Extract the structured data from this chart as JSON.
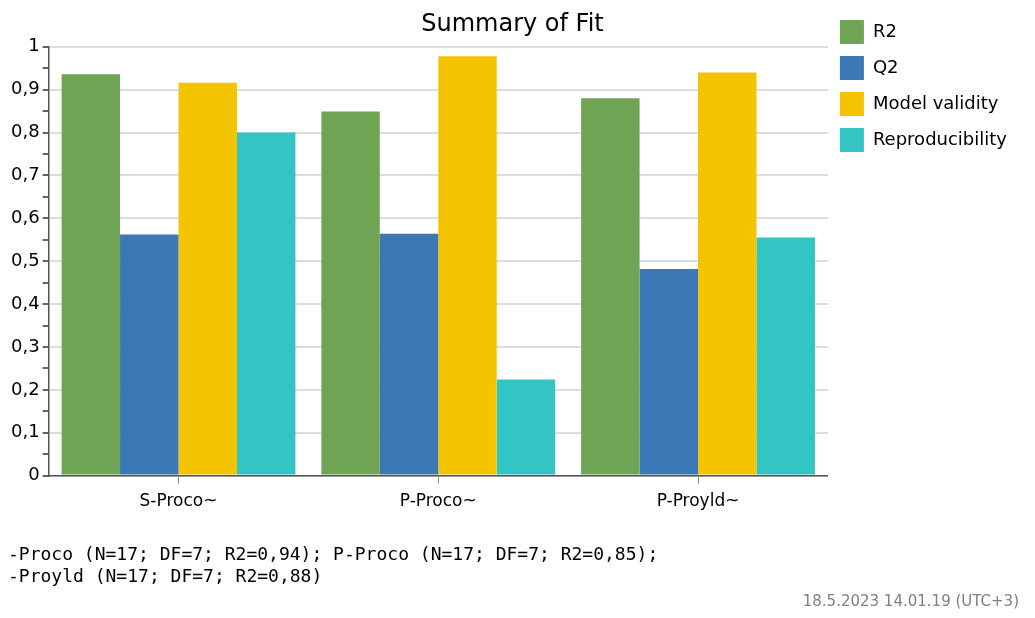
{
  "chart_data": {
    "type": "bar",
    "title": "Summary of Fit",
    "categories": [
      "S-Proco~",
      "P-Proco~",
      "P-Proyld~"
    ],
    "series": [
      {
        "name": "R2",
        "color": "#70a455",
        "values": [
          0.936,
          0.849,
          0.88
        ]
      },
      {
        "name": "Q2",
        "color": "#3c78b5",
        "values": [
          0.562,
          0.564,
          0.482
        ]
      },
      {
        "name": "Model validity",
        "color": "#f4c400",
        "values": [
          0.916,
          0.978,
          0.94
        ]
      },
      {
        "name": "Reproducibility",
        "color": "#33c4c4",
        "values": [
          0.8,
          0.224,
          0.555
        ]
      }
    ],
    "ylim": [
      0,
      1
    ],
    "yticks": [
      {
        "value": 0,
        "label": "0"
      },
      {
        "value": 0.05,
        "label": null
      },
      {
        "value": 0.1,
        "label": "0,1"
      },
      {
        "value": 0.15,
        "label": null
      },
      {
        "value": 0.2,
        "label": "0,2"
      },
      {
        "value": 0.25,
        "label": null
      },
      {
        "value": 0.3,
        "label": "0,3"
      },
      {
        "value": 0.35,
        "label": null
      },
      {
        "value": 0.4,
        "label": "0,4"
      },
      {
        "value": 0.45,
        "label": null
      },
      {
        "value": 0.5,
        "label": "0,5"
      },
      {
        "value": 0.55,
        "label": null
      },
      {
        "value": 0.6,
        "label": "0,6"
      },
      {
        "value": 0.65,
        "label": null
      },
      {
        "value": 0.7,
        "label": "0,7"
      },
      {
        "value": 0.75,
        "label": null
      },
      {
        "value": 0.8,
        "label": "0,8"
      },
      {
        "value": 0.85,
        "label": null
      },
      {
        "value": 0.9,
        "label": "0,9"
      },
      {
        "value": 0.95,
        "label": null
      },
      {
        "value": 1,
        "label": "1"
      }
    ],
    "grid": "y",
    "legend": "top right",
    "annotations": [
      "-Proco (N=17; DF=7; R2=0,94); P-Proco (N=17; DF=7; R2=0,85);",
      "-Proyld (N=17; DF=7; R2=0,88)",
      "18.5.2023 14.01.19 (UTC+3)"
    ]
  }
}
